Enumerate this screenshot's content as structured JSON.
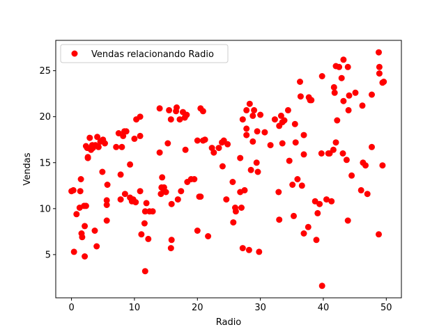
{
  "chart_data": {
    "type": "scatter",
    "xlabel": "Radio",
    "ylabel": "Vendas",
    "xlim": [
      -2.5,
      52.4
    ],
    "ylim": [
      0.3,
      28.3
    ],
    "xticks": [
      0,
      10,
      20,
      30,
      40,
      50
    ],
    "yticks": [
      5,
      10,
      15,
      20,
      25
    ],
    "legend": {
      "placement": "top-left"
    },
    "grid": false,
    "series": [
      {
        "name": "Vendas relacionando Radio",
        "color": "#ff0000",
        "points": [
          [
            0.0,
            11.9
          ],
          [
            0.3,
            12.0
          ],
          [
            0.4,
            5.3
          ],
          [
            0.8,
            9.4
          ],
          [
            1.3,
            10.1
          ],
          [
            1.4,
            11.9
          ],
          [
            1.5,
            13.2
          ],
          [
            1.6,
            7.3
          ],
          [
            1.7,
            6.9
          ],
          [
            2.0,
            10.3
          ],
          [
            2.1,
            8.1
          ],
          [
            2.1,
            4.8
          ],
          [
            2.3,
            10.3
          ],
          [
            2.3,
            16.8
          ],
          [
            2.5,
            16.6
          ],
          [
            2.6,
            15.5
          ],
          [
            2.6,
            15.6
          ],
          [
            2.9,
            17.7
          ],
          [
            3.1,
            16.4
          ],
          [
            3.3,
            16.9
          ],
          [
            3.4,
            16.6
          ],
          [
            3.7,
            7.6
          ],
          [
            3.8,
            16.9
          ],
          [
            4.0,
            5.9
          ],
          [
            4.1,
            17.8
          ],
          [
            4.3,
            16.7
          ],
          [
            4.6,
            17.3
          ],
          [
            4.9,
            14.0
          ],
          [
            5.0,
            17.5
          ],
          [
            5.3,
            17.1
          ],
          [
            5.6,
            10.4
          ],
          [
            5.6,
            10.9
          ],
          [
            5.6,
            8.7
          ],
          [
            5.7,
            12.6
          ],
          [
            7.1,
            16.7
          ],
          [
            7.5,
            18.2
          ],
          [
            7.8,
            13.7
          ],
          [
            7.8,
            11.0
          ],
          [
            8.0,
            16.7
          ],
          [
            8.2,
            17.9
          ],
          [
            8.4,
            18.4
          ],
          [
            8.5,
            11.6
          ],
          [
            8.7,
            18.4
          ],
          [
            9.3,
            11.2
          ],
          [
            9.3,
            14.8
          ],
          [
            9.6,
            10.8
          ],
          [
            9.8,
            11.0
          ],
          [
            10.0,
            17.6
          ],
          [
            10.2,
            10.7
          ],
          [
            10.3,
            19.7
          ],
          [
            10.9,
            20.0
          ],
          [
            10.9,
            11.9
          ],
          [
            10.9,
            17.9
          ],
          [
            11.1,
            7.2
          ],
          [
            11.6,
            8.4
          ],
          [
            11.7,
            9.7
          ],
          [
            11.7,
            3.2
          ],
          [
            11.9,
            10.6
          ],
          [
            12.2,
            6.7
          ],
          [
            12.4,
            9.7
          ],
          [
            12.9,
            9.7
          ],
          [
            14.0,
            16.1
          ],
          [
            14.0,
            20.9
          ],
          [
            14.2,
            11.6
          ],
          [
            14.3,
            12.3
          ],
          [
            14.4,
            13.4
          ],
          [
            14.6,
            12.1
          ],
          [
            14.7,
            12.3
          ],
          [
            15.0,
            11.8
          ],
          [
            15.3,
            17.1
          ],
          [
            15.5,
            20.7
          ],
          [
            15.8,
            19.7
          ],
          [
            15.8,
            5.7
          ],
          [
            15.9,
            6.6
          ],
          [
            15.9,
            10.5
          ],
          [
            16.6,
            20.6
          ],
          [
            16.7,
            21.0
          ],
          [
            16.9,
            11.0
          ],
          [
            17.2,
            19.7
          ],
          [
            17.4,
            11.9
          ],
          [
            17.7,
            20.5
          ],
          [
            18.0,
            19.9
          ],
          [
            18.1,
            16.4
          ],
          [
            18.3,
            20.2
          ],
          [
            18.4,
            12.9
          ],
          [
            19.0,
            13.2
          ],
          [
            19.5,
            13.2
          ],
          [
            20.0,
            17.4
          ],
          [
            20.0,
            7.6
          ],
          [
            20.3,
            11.3
          ],
          [
            20.5,
            11.3
          ],
          [
            20.5,
            20.9
          ],
          [
            20.9,
            20.6
          ],
          [
            20.9,
            17.4
          ],
          [
            21.2,
            17.5
          ],
          [
            21.7,
            7.0
          ],
          [
            22.3,
            16.6
          ],
          [
            22.6,
            16.1
          ],
          [
            23.4,
            16.6
          ],
          [
            23.9,
            17.2
          ],
          [
            24.0,
            14.6
          ],
          [
            24.2,
            17.4
          ],
          [
            24.6,
            11.0
          ],
          [
            24.8,
            17.0
          ],
          [
            25.6,
            12.9
          ],
          [
            25.7,
            8.5
          ],
          [
            26.0,
            10.1
          ],
          [
            26.1,
            9.7
          ],
          [
            26.8,
            11.8
          ],
          [
            26.8,
            15.5
          ],
          [
            27.0,
            10.1
          ],
          [
            27.2,
            19.7
          ],
          [
            27.2,
            5.7
          ],
          [
            27.5,
            12.0
          ],
          [
            27.8,
            18.7
          ],
          [
            27.8,
            20.7
          ],
          [
            27.8,
            18.0
          ],
          [
            28.2,
            5.5
          ],
          [
            28.3,
            21.4
          ],
          [
            28.5,
            14.2
          ],
          [
            28.8,
            20.1
          ],
          [
            28.8,
            17.3
          ],
          [
            29.0,
            20.7
          ],
          [
            29.4,
            15.0
          ],
          [
            29.5,
            18.4
          ],
          [
            29.6,
            14.0
          ],
          [
            29.8,
            5.3
          ],
          [
            30.0,
            20.2
          ],
          [
            30.7,
            18.3
          ],
          [
            31.6,
            16.9
          ],
          [
            32.3,
            19.7
          ],
          [
            32.9,
            11.8
          ],
          [
            33.0,
            19.0
          ],
          [
            33.0,
            8.8
          ],
          [
            33.3,
            20.1
          ],
          [
            33.5,
            17.1
          ],
          [
            33.5,
            19.4
          ],
          [
            33.8,
            19.6
          ],
          [
            34.4,
            20.7
          ],
          [
            34.6,
            15.2
          ],
          [
            35.1,
            12.6
          ],
          [
            35.3,
            9.2
          ],
          [
            35.5,
            19.2
          ],
          [
            35.6,
            17.2
          ],
          [
            35.9,
            13.2
          ],
          [
            36.3,
            23.8
          ],
          [
            36.4,
            22.2
          ],
          [
            36.6,
            12.5
          ],
          [
            36.9,
            15.9
          ],
          [
            36.9,
            18.0
          ],
          [
            36.9,
            7.3
          ],
          [
            37.6,
            8.0
          ],
          [
            37.7,
            22.1
          ],
          [
            37.9,
            21.8
          ],
          [
            38.1,
            21.8
          ],
          [
            38.7,
            10.8
          ],
          [
            38.9,
            6.6
          ],
          [
            39.1,
            9.5
          ],
          [
            39.4,
            10.5
          ],
          [
            39.7,
            16.0
          ],
          [
            39.8,
            24.4
          ],
          [
            39.8,
            1.6
          ],
          [
            40.5,
            11.0
          ],
          [
            40.8,
            16.0
          ],
          [
            41.0,
            16.0
          ],
          [
            41.3,
            10.8
          ],
          [
            41.6,
            16.4
          ],
          [
            41.7,
            23.2
          ],
          [
            41.8,
            22.6
          ],
          [
            42.0,
            17.2
          ],
          [
            42.0,
            25.5
          ],
          [
            42.2,
            19.6
          ],
          [
            42.5,
            25.4
          ],
          [
            42.9,
            24.2
          ],
          [
            43.1,
            16.0
          ],
          [
            43.2,
            26.2
          ],
          [
            43.2,
            21.7
          ],
          [
            43.7,
            15.3
          ],
          [
            43.9,
            25.4
          ],
          [
            43.9,
            8.7
          ],
          [
            44.0,
            20.7
          ],
          [
            44.1,
            22.3
          ],
          [
            44.5,
            13.6
          ],
          [
            45.1,
            22.6
          ],
          [
            46.0,
            12.0
          ],
          [
            46.2,
            21.2
          ],
          [
            46.3,
            15.0
          ],
          [
            46.7,
            14.7
          ],
          [
            47.0,
            11.6
          ],
          [
            47.7,
            22.4
          ],
          [
            47.7,
            16.7
          ],
          [
            48.8,
            7.2
          ],
          [
            48.8,
            27.0
          ],
          [
            48.9,
            25.4
          ],
          [
            48.9,
            24.7
          ],
          [
            49.4,
            14.7
          ],
          [
            49.4,
            23.7
          ],
          [
            49.6,
            23.8
          ]
        ]
      }
    ]
  }
}
